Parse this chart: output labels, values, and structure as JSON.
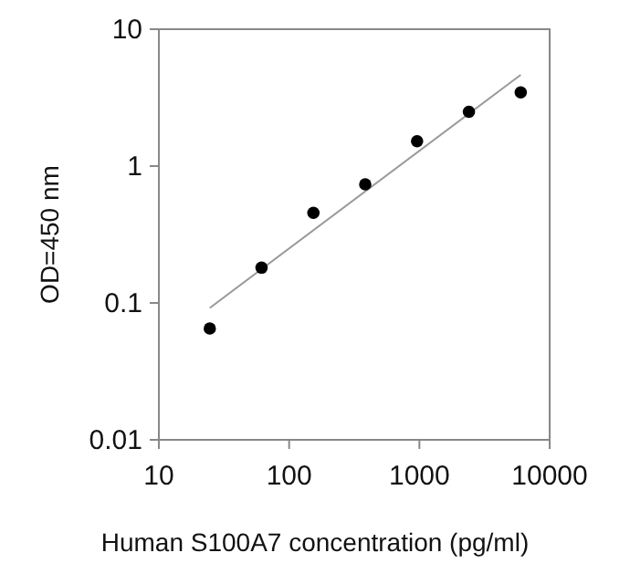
{
  "chart_data": {
    "type": "scatter",
    "xlabel": "Human S100A7 concentration (pg/ml)",
    "ylabel": "OD=450 nm",
    "log": "xy",
    "xlim": [
      10,
      10000
    ],
    "ylim": [
      0.01,
      10
    ],
    "xticks": [
      10,
      100,
      1000,
      10000
    ],
    "yticks": [
      0.01,
      0.1,
      1,
      10
    ],
    "grid": false,
    "series": [
      {
        "marker": "circle",
        "color": "#000000",
        "x": [
          24.6,
          61.4,
          153.6,
          384,
          960,
          2400,
          6000
        ],
        "values": [
          0.065,
          0.181,
          0.455,
          0.736,
          1.52,
          2.49,
          3.45
        ]
      },
      {
        "type": "line",
        "marker": "none",
        "color": "#999999",
        "x": [
          24.6,
          6000
        ],
        "values": [
          0.092,
          4.64
        ]
      }
    ]
  }
}
